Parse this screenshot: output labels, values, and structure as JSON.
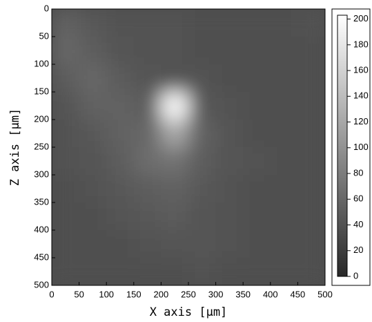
{
  "chart_data": {
    "type": "heatmap",
    "x_label": "X axis [μm]",
    "y_label": "Z axis [μm]",
    "x": [
      25,
      75,
      125,
      175,
      225,
      275,
      325,
      375,
      425,
      475
    ],
    "y": [
      25,
      75,
      125,
      175,
      225,
      275,
      325,
      375,
      425,
      475
    ],
    "values": [
      [
        55,
        45,
        40,
        40,
        40,
        38,
        38,
        38,
        38,
        40
      ],
      [
        60,
        50,
        42,
        40,
        40,
        38,
        38,
        38,
        38,
        38
      ],
      [
        50,
        60,
        48,
        42,
        40,
        40,
        38,
        38,
        38,
        38
      ],
      [
        42,
        55,
        55,
        50,
        200,
        45,
        40,
        38,
        38,
        38
      ],
      [
        40,
        45,
        55,
        60,
        120,
        55,
        42,
        38,
        38,
        38
      ],
      [
        40,
        42,
        50,
        65,
        70,
        50,
        42,
        40,
        38,
        38
      ],
      [
        38,
        40,
        45,
        50,
        55,
        45,
        40,
        38,
        38,
        38
      ],
      [
        38,
        38,
        42,
        45,
        48,
        42,
        40,
        38,
        38,
        38
      ],
      [
        38,
        38,
        38,
        40,
        42,
        42,
        40,
        38,
        38,
        38
      ],
      [
        38,
        38,
        38,
        38,
        38,
        40,
        38,
        38,
        38,
        38
      ]
    ],
    "xlim": [
      0,
      500
    ],
    "xticks": [
      0,
      50,
      100,
      150,
      200,
      250,
      300,
      350,
      400,
      450,
      500
    ],
    "ylim": [
      500,
      0
    ],
    "yticks": [
      0,
      50,
      100,
      150,
      200,
      250,
      300,
      350,
      400,
      450,
      500
    ],
    "clim": [
      0,
      203
    ],
    "cticks": [
      0,
      20,
      40,
      60,
      80,
      100,
      120,
      140,
      160,
      180,
      200
    ]
  }
}
